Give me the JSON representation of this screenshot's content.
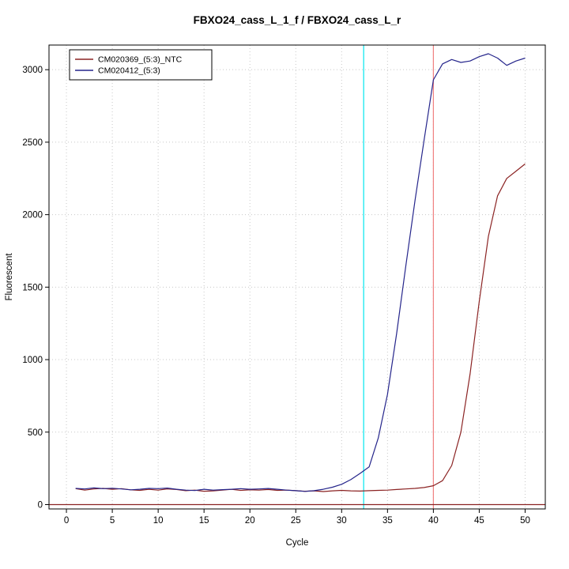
{
  "chart_data": {
    "type": "line",
    "title": "FBXO24_cass_L_1_f / FBXO24_cass_L_r",
    "xlabel": "Cycle",
    "ylabel": "Fluorescent",
    "x_ticks": [
      0,
      5,
      10,
      15,
      20,
      25,
      30,
      35,
      40,
      45,
      50
    ],
    "y_ticks": [
      0,
      500,
      1000,
      1500,
      2000,
      2500,
      3000
    ],
    "xlim": [
      -1.9,
      52.2
    ],
    "ylim": [
      -30,
      3170
    ],
    "grid": true,
    "grid_color": "#c8c8c8",
    "border_color": "#000000",
    "legend": {
      "position": "top-left",
      "entries": [
        {
          "label": "CM020369_(5:3)_NTC",
          "color": "#8b2323"
        },
        {
          "label": "CM020412_(5:3)",
          "color": "#25258b"
        }
      ]
    },
    "series": [
      {
        "name": "CM020369_(5:3)_NTC",
        "color": "#8b2323",
        "x": [
          1,
          2,
          3,
          4,
          5,
          6,
          7,
          8,
          9,
          10,
          11,
          12,
          13,
          14,
          15,
          16,
          17,
          18,
          19,
          20,
          21,
          22,
          23,
          24,
          25,
          26,
          27,
          28,
          29,
          30,
          31,
          32,
          33,
          34,
          35,
          36,
          37,
          38,
          39,
          40,
          41,
          42,
          43,
          44,
          45,
          46,
          47,
          48,
          49,
          50
        ],
        "values": [
          110,
          100,
          108,
          112,
          105,
          110,
          102,
          98,
          105,
          100,
          108,
          104,
          96,
          100,
          92,
          95,
          100,
          105,
          98,
          102,
          100,
          104,
          98,
          100,
          96,
          92,
          95,
          90,
          95,
          98,
          95,
          93,
          96,
          98,
          100,
          104,
          108,
          112,
          118,
          130,
          165,
          270,
          500,
          900,
          1400,
          1850,
          2130,
          2250,
          2300,
          2350
        ]
      },
      {
        "name": "CM020412_(5:3)",
        "color": "#25258b",
        "x": [
          1,
          2,
          3,
          4,
          5,
          6,
          7,
          8,
          9,
          10,
          11,
          12,
          13,
          14,
          15,
          16,
          17,
          18,
          19,
          20,
          21,
          22,
          23,
          24,
          25,
          26,
          27,
          28,
          29,
          30,
          31,
          32,
          33,
          34,
          35,
          36,
          37,
          38,
          39,
          40,
          41,
          42,
          43,
          44,
          45,
          46,
          47,
          48,
          49,
          50
        ],
        "values": [
          112,
          108,
          115,
          110,
          113,
          108,
          102,
          106,
          112,
          110,
          114,
          106,
          100,
          97,
          106,
          100,
          103,
          106,
          110,
          106,
          108,
          111,
          106,
          100,
          96,
          91,
          96,
          106,
          120,
          140,
          172,
          215,
          260,
          460,
          760,
          1180,
          1650,
          2100,
          2520,
          2930,
          3040,
          3070,
          3050,
          3060,
          3090,
          3110,
          3080,
          3030,
          3060,
          3080
        ]
      }
    ],
    "vlines": [
      {
        "x": 32.4,
        "color": "#00e5ee",
        "name": "threshold-vline-cyan"
      },
      {
        "x": 40,
        "color": "#f08080",
        "name": "cutoff-vline-red"
      }
    ],
    "hlines": [
      {
        "y": 0,
        "color": "#8b2323",
        "name": "baseline-hline"
      }
    ]
  }
}
